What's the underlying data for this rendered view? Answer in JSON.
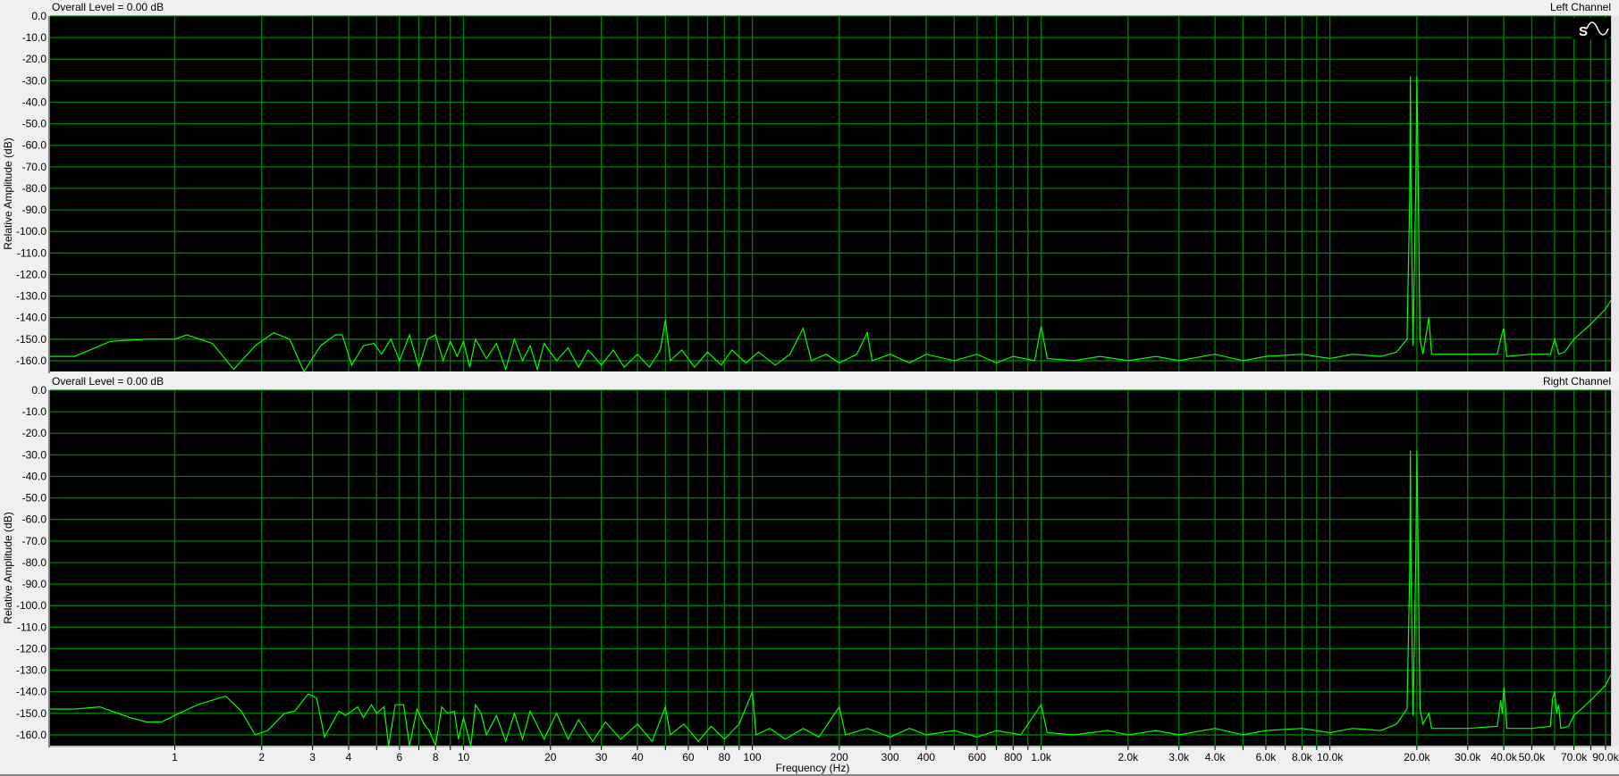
{
  "window": {
    "background": "#f0f0f0"
  },
  "colors": {
    "plot_bg": "#000000",
    "grid": "#008000",
    "trace": "#00ff00"
  },
  "icons": {
    "corner": [
      "stereo-st-icon",
      "sine-wave-icon"
    ]
  },
  "chart_data": [
    {
      "type": "line",
      "title": "Left Channel",
      "header": "Overall Level = 0.00 dB",
      "ylabel": "Relative Amplitude (dB)",
      "xlabel": "Frequency (Hz)",
      "xscale": "log",
      "xlim": [
        0.37,
        94000
      ],
      "ylim": [
        -165,
        0
      ],
      "grid": true,
      "yticks": [
        0,
        -10,
        -20,
        -30,
        -40,
        -50,
        -60,
        -70,
        -80,
        -90,
        -100,
        -110,
        -120,
        -130,
        -140,
        -150,
        -160
      ],
      "ytick_labels": [
        "0.0",
        "-10.0",
        "-20.0",
        "-30.0",
        "-40.0",
        "-50.0",
        "-60.0",
        "-70.0",
        "-80.0",
        "-90.0",
        "-100.0",
        "-110.0",
        "-120.0",
        "-130.0",
        "-140.0",
        "-150.0",
        "-160.0"
      ],
      "points": [
        [
          0.37,
          -158
        ],
        [
          0.45,
          -158
        ],
        [
          0.6,
          -151
        ],
        [
          0.8,
          -150
        ],
        [
          1.0,
          -150
        ],
        [
          1.1,
          -148
        ],
        [
          1.35,
          -152
        ],
        [
          1.6,
          -164
        ],
        [
          1.9,
          -153
        ],
        [
          2.2,
          -147
        ],
        [
          2.5,
          -150
        ],
        [
          2.8,
          -165
        ],
        [
          3.2,
          -153
        ],
        [
          3.6,
          -148
        ],
        [
          3.8,
          -148
        ],
        [
          4.1,
          -162
        ],
        [
          4.5,
          -153
        ],
        [
          4.9,
          -152
        ],
        [
          5.2,
          -157
        ],
        [
          5.6,
          -150
        ],
        [
          6.0,
          -160
        ],
        [
          6.5,
          -148
        ],
        [
          7.0,
          -163
        ],
        [
          7.5,
          -150
        ],
        [
          8.0,
          -148
        ],
        [
          8.5,
          -160
        ],
        [
          9.0,
          -151
        ],
        [
          9.5,
          -158
        ],
        [
          10,
          -151
        ],
        [
          10.5,
          -163
        ],
        [
          11,
          -150
        ],
        [
          12,
          -159
        ],
        [
          13,
          -152
        ],
        [
          14,
          -164
        ],
        [
          15,
          -150
        ],
        [
          16,
          -160
        ],
        [
          17,
          -153
        ],
        [
          18,
          -164
        ],
        [
          19,
          -152
        ],
        [
          21,
          -160
        ],
        [
          23,
          -154
        ],
        [
          25,
          -163
        ],
        [
          27,
          -155
        ],
        [
          30,
          -162
        ],
        [
          33,
          -155
        ],
        [
          36,
          -163
        ],
        [
          40,
          -157
        ],
        [
          44,
          -163
        ],
        [
          48,
          -155
        ],
        [
          50,
          -141
        ],
        [
          52,
          -160
        ],
        [
          57,
          -155
        ],
        [
          63,
          -163
        ],
        [
          70,
          -156
        ],
        [
          78,
          -162
        ],
        [
          85,
          -155
        ],
        [
          95,
          -161
        ],
        [
          105,
          -156
        ],
        [
          120,
          -162
        ],
        [
          135,
          -157
        ],
        [
          150,
          -145
        ],
        [
          160,
          -160
        ],
        [
          180,
          -157
        ],
        [
          200,
          -161
        ],
        [
          230,
          -157
        ],
        [
          250,
          -147
        ],
        [
          260,
          -160
        ],
        [
          300,
          -157
        ],
        [
          350,
          -161
        ],
        [
          400,
          -157
        ],
        [
          500,
          -160
        ],
        [
          600,
          -157
        ],
        [
          700,
          -161
        ],
        [
          800,
          -158
        ],
        [
          950,
          -160
        ],
        [
          1000,
          -144
        ],
        [
          1050,
          -159
        ],
        [
          1300,
          -160
        ],
        [
          1600,
          -158
        ],
        [
          2000,
          -160
        ],
        [
          2500,
          -158
        ],
        [
          3000,
          -160
        ],
        [
          4000,
          -157
        ],
        [
          5000,
          -160
        ],
        [
          6000,
          -158
        ],
        [
          8000,
          -157
        ],
        [
          10000,
          -159
        ],
        [
          12000,
          -157
        ],
        [
          15000,
          -158
        ],
        [
          17000,
          -156
        ],
        [
          18500,
          -150
        ],
        [
          18900,
          -84
        ],
        [
          19000,
          -28
        ],
        [
          19100,
          -84
        ],
        [
          19400,
          -153
        ],
        [
          19800,
          -84
        ],
        [
          20000,
          -28
        ],
        [
          20200,
          -74
        ],
        [
          20500,
          -150
        ],
        [
          21000,
          -157
        ],
        [
          22000,
          -140
        ],
        [
          22500,
          -157
        ],
        [
          30000,
          -157
        ],
        [
          38000,
          -157
        ],
        [
          39500,
          -147
        ],
        [
          40000,
          -145
        ],
        [
          41000,
          -158
        ],
        [
          50000,
          -157
        ],
        [
          58000,
          -157
        ],
        [
          60000,
          -150
        ],
        [
          62000,
          -157
        ],
        [
          65000,
          -156
        ],
        [
          70000,
          -150
        ],
        [
          80000,
          -143
        ],
        [
          90000,
          -136
        ],
        [
          94000,
          -132
        ]
      ]
    },
    {
      "type": "line",
      "title": "Right Channel",
      "header": "Overall Level = 0.00 dB",
      "ylabel": "Relative Amplitude (dB)",
      "xlabel": "Frequency (Hz)",
      "xscale": "log",
      "xlim": [
        0.37,
        94000
      ],
      "ylim": [
        -165,
        0
      ],
      "grid": true,
      "yticks": [
        0,
        -10,
        -20,
        -30,
        -40,
        -50,
        -60,
        -70,
        -80,
        -90,
        -100,
        -110,
        -120,
        -130,
        -140,
        -150,
        -160
      ],
      "ytick_labels": [
        "0.0",
        "-10.0",
        "-20.0",
        "-30.0",
        "-40.0",
        "-50.0",
        "-60.0",
        "-70.0",
        "-80.0",
        "-90.0",
        "-100.0",
        "-110.0",
        "-120.0",
        "-130.0",
        "-140.0",
        "-150.0",
        "-160.0"
      ],
      "xticks": [
        1,
        2,
        3,
        4,
        6,
        8,
        10,
        20,
        30,
        40,
        60,
        80,
        100,
        200,
        300,
        400,
        600,
        800,
        1000,
        2000,
        3000,
        4000,
        6000,
        8000,
        10000,
        20000,
        30000,
        40000,
        50000,
        70000,
        90000
      ],
      "xtick_labels": [
        "1",
        "2",
        "3",
        "4",
        "6",
        "8",
        "10",
        "20",
        "30",
        "40",
        "60",
        "80",
        "100",
        "200",
        "300",
        "400",
        "600",
        "800",
        "1.0k",
        "2.0k",
        "3.0k",
        "4.0k",
        "6.0k",
        "8.0k",
        "10.0k",
        "20.0k",
        "30.0k",
        "40.0k",
        "50.0k",
        "70.0k",
        "90.0k"
      ],
      "points": [
        [
          0.37,
          -148
        ],
        [
          0.45,
          -148
        ],
        [
          0.55,
          -147
        ],
        [
          0.7,
          -152
        ],
        [
          0.8,
          -154
        ],
        [
          0.9,
          -154
        ],
        [
          1.0,
          -151
        ],
        [
          1.2,
          -146
        ],
        [
          1.5,
          -142
        ],
        [
          1.7,
          -149
        ],
        [
          1.9,
          -160
        ],
        [
          2.1,
          -158
        ],
        [
          2.4,
          -150
        ],
        [
          2.6,
          -149
        ],
        [
          2.9,
          -141
        ],
        [
          3.1,
          -143
        ],
        [
          3.3,
          -161
        ],
        [
          3.7,
          -149
        ],
        [
          3.9,
          -151
        ],
        [
          4.3,
          -147
        ],
        [
          4.5,
          -152
        ],
        [
          4.8,
          -146
        ],
        [
          5.0,
          -150
        ],
        [
          5.3,
          -147
        ],
        [
          5.5,
          -165
        ],
        [
          5.8,
          -146
        ],
        [
          6.2,
          -146
        ],
        [
          6.5,
          -165
        ],
        [
          6.9,
          -148
        ],
        [
          7.3,
          -155
        ],
        [
          7.6,
          -158
        ],
        [
          8.0,
          -165
        ],
        [
          8.4,
          -147
        ],
        [
          8.8,
          -150
        ],
        [
          9.3,
          -149
        ],
        [
          9.6,
          -162
        ],
        [
          10,
          -152
        ],
        [
          10.6,
          -165
        ],
        [
          11,
          -146
        ],
        [
          11.5,
          -150
        ],
        [
          12,
          -160
        ],
        [
          13,
          -151
        ],
        [
          14,
          -163
        ],
        [
          15,
          -150
        ],
        [
          16,
          -162
        ],
        [
          17,
          -149
        ],
        [
          19,
          -162
        ],
        [
          21,
          -150
        ],
        [
          23,
          -162
        ],
        [
          25,
          -153
        ],
        [
          28,
          -163
        ],
        [
          31,
          -154
        ],
        [
          35,
          -162
        ],
        [
          40,
          -155
        ],
        [
          45,
          -163
        ],
        [
          50,
          -147
        ],
        [
          52,
          -160
        ],
        [
          58,
          -155
        ],
        [
          65,
          -163
        ],
        [
          72,
          -156
        ],
        [
          80,
          -162
        ],
        [
          90,
          -155
        ],
        [
          100,
          -140
        ],
        [
          103,
          -160
        ],
        [
          115,
          -157
        ],
        [
          130,
          -162
        ],
        [
          150,
          -157
        ],
        [
          170,
          -161
        ],
        [
          200,
          -147
        ],
        [
          210,
          -160
        ],
        [
          250,
          -157
        ],
        [
          300,
          -161
        ],
        [
          350,
          -157
        ],
        [
          400,
          -160
        ],
        [
          500,
          -158
        ],
        [
          600,
          -161
        ],
        [
          700,
          -158
        ],
        [
          850,
          -160
        ],
        [
          1000,
          -146
        ],
        [
          1050,
          -159
        ],
        [
          1300,
          -160
        ],
        [
          1700,
          -158
        ],
        [
          2000,
          -160
        ],
        [
          2500,
          -158
        ],
        [
          3000,
          -160
        ],
        [
          4000,
          -157
        ],
        [
          5000,
          -160
        ],
        [
          6000,
          -158
        ],
        [
          8000,
          -157
        ],
        [
          10000,
          -159
        ],
        [
          12000,
          -157
        ],
        [
          15000,
          -158
        ],
        [
          17000,
          -155
        ],
        [
          18500,
          -148
        ],
        [
          18900,
          -84
        ],
        [
          19000,
          -28
        ],
        [
          19100,
          -84
        ],
        [
          19400,
          -151
        ],
        [
          19800,
          -84
        ],
        [
          20000,
          -28
        ],
        [
          20200,
          -74
        ],
        [
          20500,
          -148
        ],
        [
          21000,
          -155
        ],
        [
          22000,
          -150
        ],
        [
          22500,
          -157
        ],
        [
          30000,
          -157
        ],
        [
          38000,
          -156
        ],
        [
          39000,
          -144
        ],
        [
          39500,
          -150
        ],
        [
          40000,
          -138
        ],
        [
          40500,
          -146
        ],
        [
          41000,
          -157
        ],
        [
          50000,
          -157
        ],
        [
          58000,
          -156
        ],
        [
          59000,
          -143
        ],
        [
          60000,
          -140
        ],
        [
          61000,
          -150
        ],
        [
          62000,
          -146
        ],
        [
          63000,
          -157
        ],
        [
          67000,
          -156
        ],
        [
          70000,
          -151
        ],
        [
          80000,
          -144
        ],
        [
          90000,
          -137
        ],
        [
          94000,
          -132
        ]
      ]
    }
  ]
}
